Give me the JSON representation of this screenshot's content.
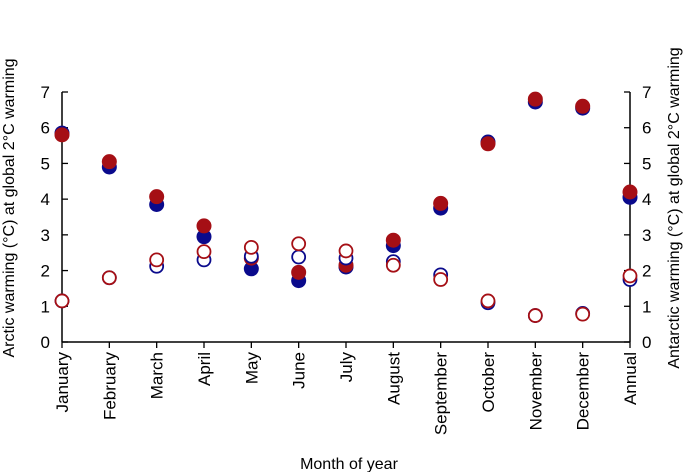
{
  "chart_data": {
    "type": "scatter",
    "categories": [
      "January",
      "February",
      "March",
      "April",
      "May",
      "June",
      "July",
      "August",
      "September",
      "October",
      "November",
      "December",
      "Annual"
    ],
    "xlabel": "Month of year",
    "ylabel_left": "Arctic warming (°C) at global 2°C warming",
    "ylabel_right": "Antarctic warming (°C) at global 2°C warming",
    "ylim": [
      0,
      7
    ],
    "yticks": [
      0,
      1,
      2,
      3,
      4,
      5,
      6,
      7
    ],
    "grid": false,
    "series": [
      {
        "axis": "left",
        "marker": "filled",
        "color": "#0a0a8c",
        "values": [
          5.85,
          4.9,
          3.85,
          2.95,
          2.05,
          1.72,
          2.1,
          2.7,
          3.75,
          5.6,
          6.72,
          6.55,
          4.05
        ]
      },
      {
        "axis": "left",
        "marker": "filled",
        "color": "#a50f15",
        "values": [
          5.8,
          5.05,
          4.07,
          3.25,
          2.35,
          1.95,
          2.15,
          2.85,
          3.88,
          5.55,
          6.8,
          6.6,
          4.2
        ]
      },
      {
        "axis": "right",
        "marker": "open",
        "color": "#0a0a8c",
        "values": [
          1.15,
          1.8,
          2.12,
          2.3,
          2.4,
          2.38,
          2.35,
          2.25,
          1.88,
          1.1,
          0.74,
          0.8,
          1.75
        ]
      },
      {
        "axis": "right",
        "marker": "open",
        "color": "#a50f15",
        "values": [
          1.15,
          1.8,
          2.3,
          2.53,
          2.65,
          2.75,
          2.55,
          2.15,
          1.75,
          1.15,
          0.74,
          0.78,
          1.85
        ]
      }
    ]
  }
}
